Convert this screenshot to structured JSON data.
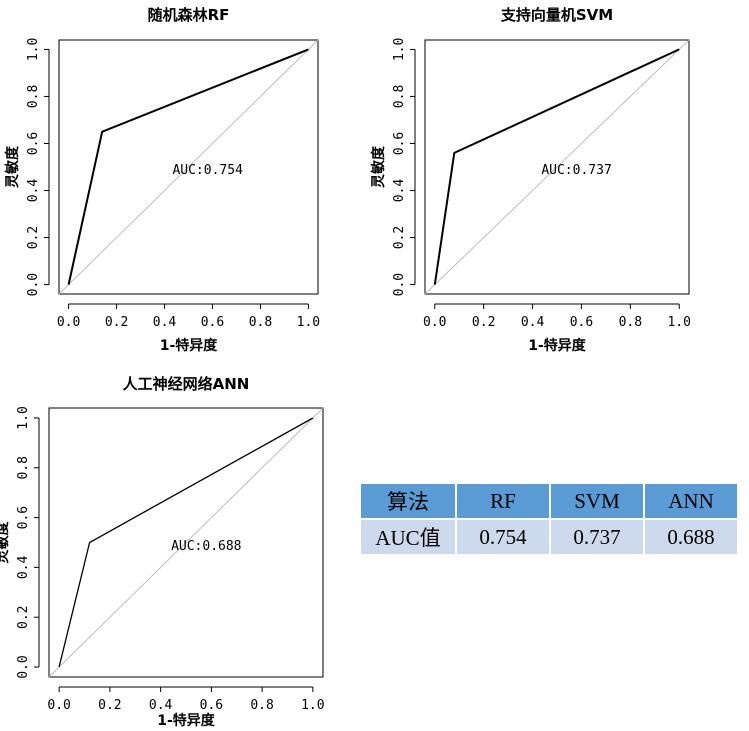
{
  "colors": {
    "frame": "#000000",
    "roc": "#000000",
    "diagonal": "#bdbdbd",
    "table_header_bg": "#5b9bd5",
    "table_row_bg": "#cdd9ec"
  },
  "chart_data": [
    {
      "type": "line",
      "title": "随机森林RF",
      "xlabel": "1-特异度",
      "ylabel": "灵敏度",
      "xlim": [
        -0.04,
        1.04
      ],
      "ylim": [
        -0.04,
        1.04
      ],
      "grid": false,
      "xticks": [
        "0.0",
        "0.2",
        "0.4",
        "0.6",
        "0.8",
        "1.0"
      ],
      "yticks": [
        "0.0",
        "0.2",
        "0.4",
        "0.6",
        "0.8",
        "1.0"
      ],
      "series": [
        {
          "x": [
            0.0,
            0.14,
            1.0
          ],
          "y": [
            0.0,
            0.65,
            1.0
          ]
        }
      ],
      "reference_line": {
        "x": [
          -0.04,
          1.04
        ],
        "y": [
          -0.04,
          1.04
        ]
      },
      "annotation": {
        "text": "AUC:0.754",
        "x": 0.58,
        "y": 0.47
      }
    },
    {
      "type": "line",
      "title": "支持向量机SVM",
      "xlabel": "1-特异度",
      "ylabel": "灵敏度",
      "xlim": [
        -0.04,
        1.04
      ],
      "ylim": [
        -0.04,
        1.04
      ],
      "grid": false,
      "xticks": [
        "0.0",
        "0.2",
        "0.4",
        "0.6",
        "0.8",
        "1.0"
      ],
      "yticks": [
        "0.0",
        "0.2",
        "0.4",
        "0.6",
        "0.8",
        "1.0"
      ],
      "series": [
        {
          "x": [
            0.0,
            0.08,
            1.0
          ],
          "y": [
            0.0,
            0.56,
            1.0
          ]
        }
      ],
      "reference_line": {
        "x": [
          -0.04,
          1.04
        ],
        "y": [
          -0.04,
          1.04
        ]
      },
      "annotation": {
        "text": "AUC:0.737",
        "x": 0.58,
        "y": 0.47
      }
    },
    {
      "type": "line",
      "title": "人工神经网络ANN",
      "xlabel": "1-特异度",
      "ylabel": "灵敏度",
      "xlim": [
        -0.04,
        1.04
      ],
      "ylim": [
        -0.04,
        1.04
      ],
      "grid": false,
      "xticks": [
        "0.0",
        "0.2",
        "0.4",
        "0.6",
        "0.8",
        "1.0"
      ],
      "yticks": [
        "0.0",
        "0.2",
        "0.4",
        "0.6",
        "0.8",
        "1.0"
      ],
      "series": [
        {
          "x": [
            0.0,
            0.12,
            1.0
          ],
          "y": [
            0.0,
            0.5,
            1.0
          ]
        }
      ],
      "reference_line": {
        "x": [
          -0.04,
          1.04
        ],
        "y": [
          -0.04,
          1.04
        ]
      },
      "annotation": {
        "text": "AUC:0.688",
        "x": 0.58,
        "y": 0.47
      }
    }
  ],
  "table": {
    "headers": [
      "算法",
      "RF",
      "SVM",
      "ANN"
    ],
    "row": [
      "AUC值",
      "0.754",
      "0.737",
      "0.688"
    ]
  }
}
